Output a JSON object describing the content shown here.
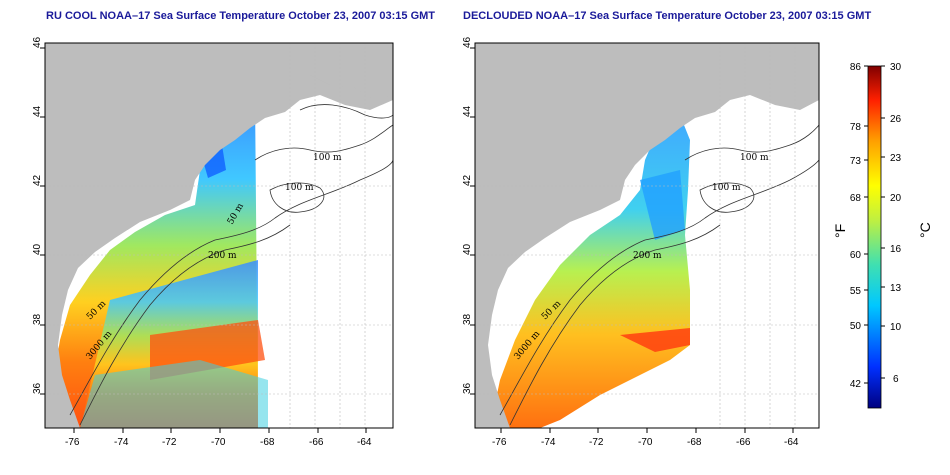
{
  "titles": {
    "left": "RU COOL NOAA–17 Sea Surface Temperature October 23, 2007 03:15 GMT",
    "right": "DECLOUDED NOAA–17 Sea Surface Temperature October 23, 2007 03:15 GMT"
  },
  "axes": {
    "lon_ticks": [
      "-76",
      "-74",
      "-72",
      "-70",
      "-68",
      "-66",
      "-64"
    ],
    "lat_ticks": [
      "36",
      "38",
      "40",
      "42",
      "44",
      "46"
    ]
  },
  "contour_labels": {
    "left": [
      "100 m",
      "100 m",
      "50 m",
      "200 m",
      "50 m",
      "3000 m"
    ],
    "right": [
      "100 m",
      "100 m",
      "200 m",
      "50 m",
      "3000 m"
    ]
  },
  "colorbar": {
    "fahrenheit_ticks": [
      "86",
      "78",
      "73",
      "68",
      "60",
      "55",
      "50",
      "42"
    ],
    "celsius_ticks": [
      "30",
      "26",
      "23",
      "20",
      "16",
      "13",
      "10",
      "6"
    ],
    "fahrenheit_unit": "°F",
    "celsius_unit": "°C",
    "range_celsius": [
      4,
      30
    ]
  },
  "colors": {
    "land": "#bdbdbd",
    "title": "#1a1a9a",
    "grid": "#bbbbbb"
  }
}
